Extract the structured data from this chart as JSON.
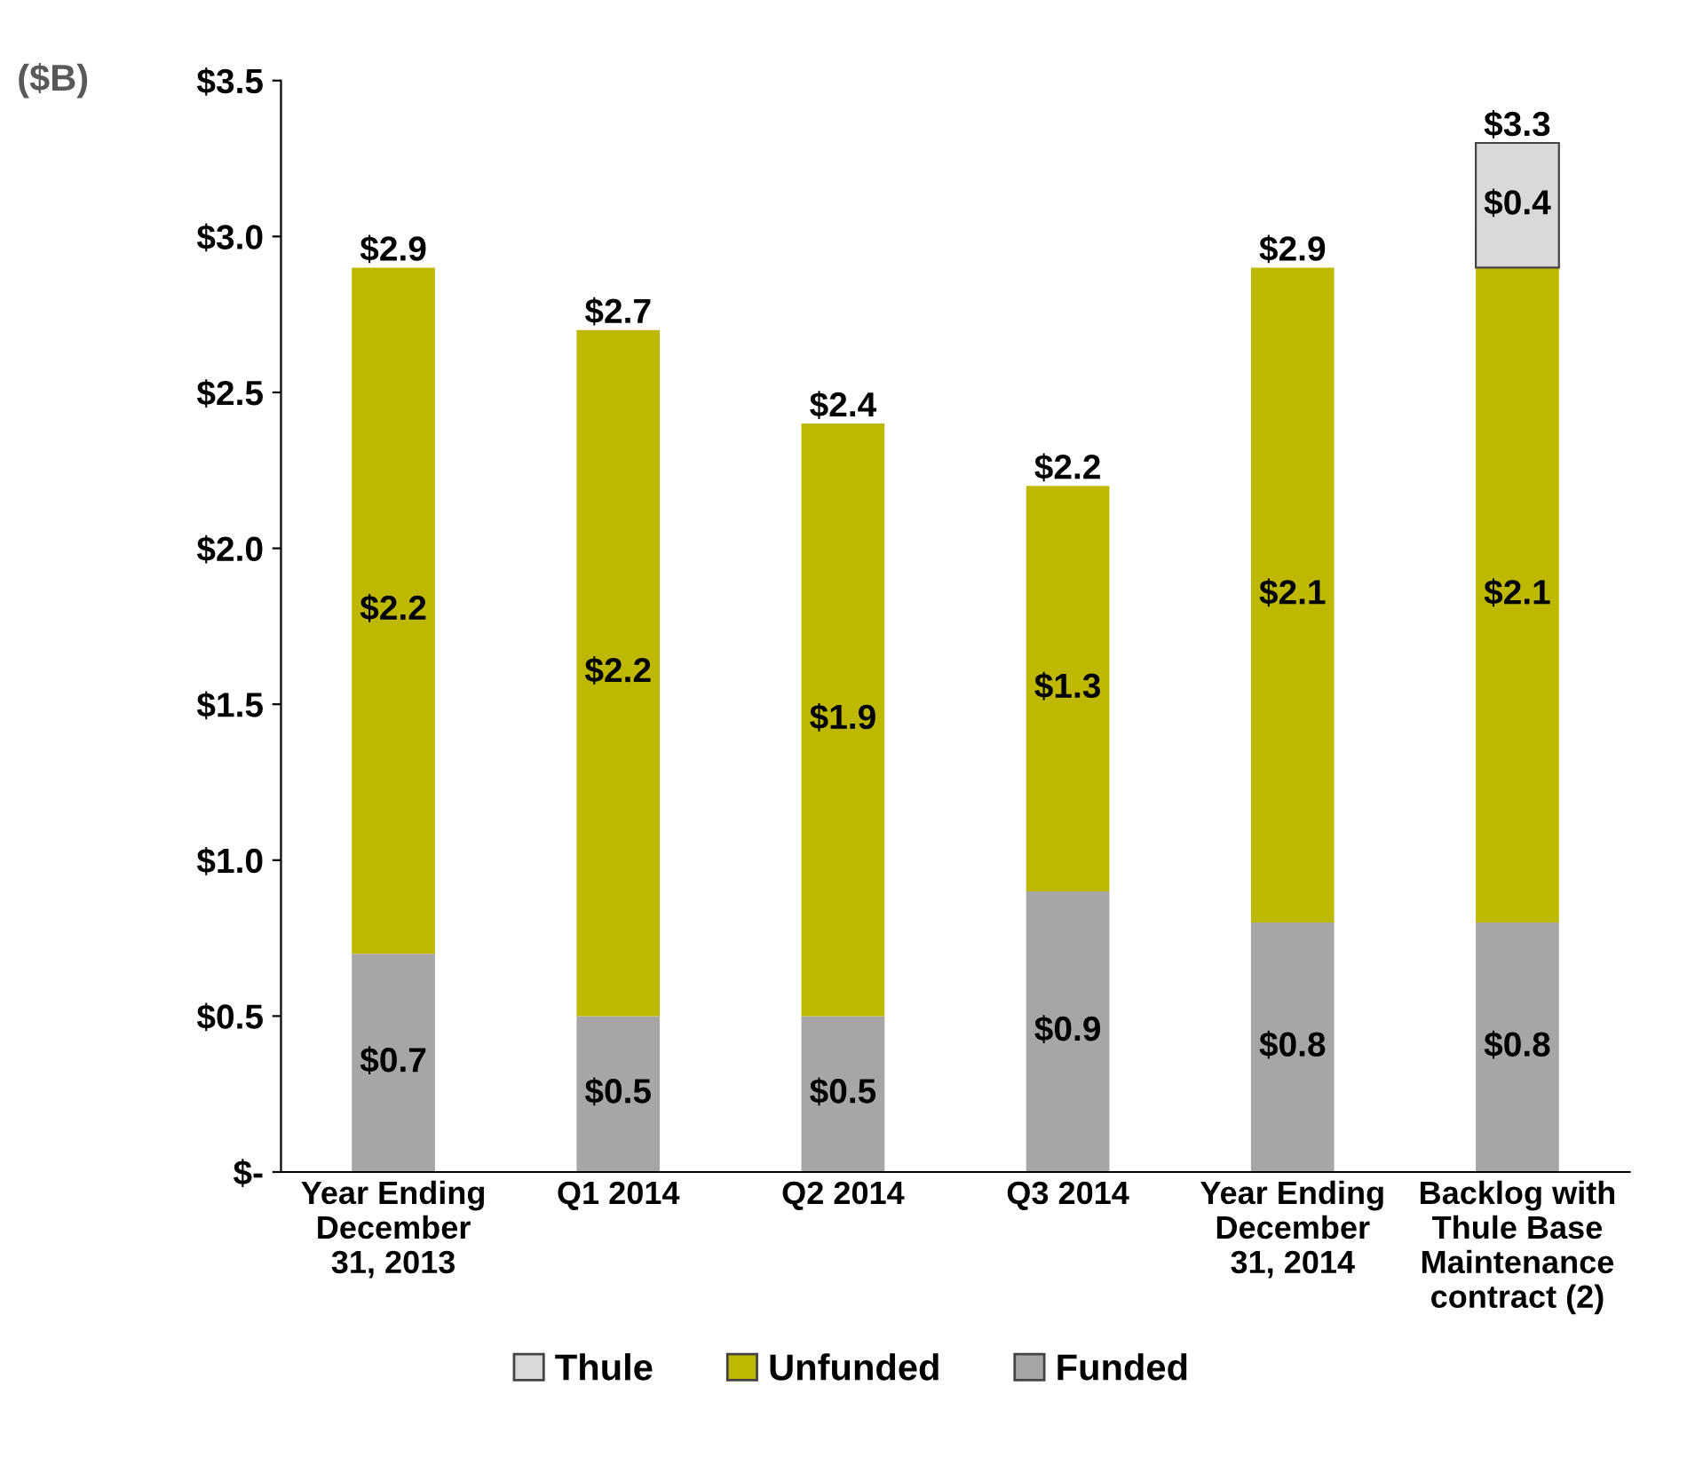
{
  "chart_data": {
    "type": "bar",
    "stacked": true,
    "ylabel": "($B)",
    "categories": [
      "Year Ending December 31, 2013",
      "Q1 2014",
      "Q2 2014",
      "Q3 2014",
      "Year Ending December 31, 2014",
      "Backlog with Thule Base Maintenance contract (2)"
    ],
    "series": [
      {
        "name": "Funded",
        "color": "#a6a6a6",
        "values": [
          0.7,
          0.5,
          0.5,
          0.9,
          0.8,
          0.8
        ],
        "value_labels": [
          "$0.7",
          "$0.5",
          "$0.5",
          "$0.9",
          "$0.8",
          "$0.8"
        ]
      },
      {
        "name": "Unfunded",
        "color": "#bfb800",
        "values": [
          2.2,
          2.2,
          1.9,
          1.3,
          2.1,
          2.1
        ],
        "value_labels": [
          "$2.2",
          "$2.2",
          "$1.9",
          "$1.3",
          "$2.1",
          "$2.1"
        ]
      },
      {
        "name": "Thule",
        "color": "#d9d9d9",
        "values": [
          null,
          null,
          null,
          null,
          null,
          0.4
        ],
        "value_labels": [
          null,
          null,
          null,
          null,
          null,
          "$0.4"
        ]
      }
    ],
    "totals": [
      "$2.9",
      "$2.7",
      "$2.4",
      "$2.2",
      "$2.9",
      "$3.3"
    ],
    "ylim": [
      0,
      3.5
    ],
    "yticks": [
      {
        "value": 0,
        "label": "$-"
      },
      {
        "value": 0.5,
        "label": "$0.5"
      },
      {
        "value": 1.0,
        "label": "$1.0"
      },
      {
        "value": 1.5,
        "label": "$1.5"
      },
      {
        "value": 2.0,
        "label": "$2.0"
      },
      {
        "value": 2.5,
        "label": "$2.5"
      },
      {
        "value": 3.0,
        "label": "$3.0"
      },
      {
        "value": 3.5,
        "label": "$3.5"
      }
    ],
    "grid": false,
    "legend": "bottom"
  }
}
